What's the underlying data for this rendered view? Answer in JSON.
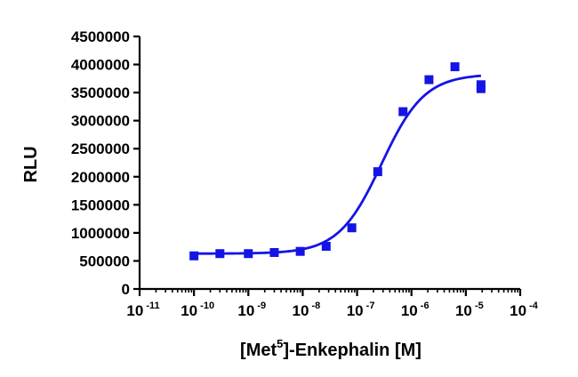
{
  "chart_data": {
    "type": "scatter",
    "title": "",
    "xlabel": {
      "before": "[Met",
      "sup": "5",
      "after": "]-Enkephalin [M]"
    },
    "ylabel": "RLU",
    "x_scale": "log10",
    "xlim": [
      1e-11,
      0.0001
    ],
    "ylim": [
      0,
      4500000
    ],
    "x_ticks": [
      {
        "base": "10",
        "exp": "-11",
        "value": 1e-11
      },
      {
        "base": "10",
        "exp": "-10",
        "value": 1e-10
      },
      {
        "base": "10",
        "exp": "-9",
        "value": 1e-09
      },
      {
        "base": "10",
        "exp": "-8",
        "value": 1e-08
      },
      {
        "base": "10",
        "exp": "-7",
        "value": 1e-07
      },
      {
        "base": "10",
        "exp": "-6",
        "value": 1e-06
      },
      {
        "base": "10",
        "exp": "-5",
        "value": 1e-05
      },
      {
        "base": "10",
        "exp": "-4",
        "value": 0.0001
      }
    ],
    "y_ticks": [
      "0",
      "500000",
      "1000000",
      "1500000",
      "2000000",
      "2500000",
      "3000000",
      "3500000",
      "4000000",
      "4500000"
    ],
    "series": [
      {
        "marker": "square",
        "color": "#1414e6",
        "points": [
          {
            "x": 1e-10,
            "y": 590000
          },
          {
            "x": 3e-10,
            "y": 630000
          },
          {
            "x": 1e-09,
            "y": 630000
          },
          {
            "x": 3e-09,
            "y": 650000
          },
          {
            "x": 9e-09,
            "y": 670000
          },
          {
            "x": 2.7e-08,
            "y": 760000
          },
          {
            "x": 8e-08,
            "y": 1090000
          },
          {
            "x": 2.4e-07,
            "y": 2090000
          },
          {
            "x": 7e-07,
            "y": 3160000
          },
          {
            "x": 2.1e-06,
            "y": 3730000
          },
          {
            "x": 6.3e-06,
            "y": 3960000
          },
          {
            "x": 1.9e-05,
            "y": 3640000
          },
          {
            "x": 1.9e-05,
            "y": 3570000
          }
        ]
      }
    ],
    "fit_curve": {
      "model": "sigmoidal dose-response",
      "bottom": 630000,
      "top": 3830000,
      "log_ec50": -6.55,
      "hill_slope": 1.1,
      "x_range": [
        1e-10,
        1.9e-05
      ],
      "color": "#1414e6"
    },
    "grid": false,
    "legend": "none"
  }
}
